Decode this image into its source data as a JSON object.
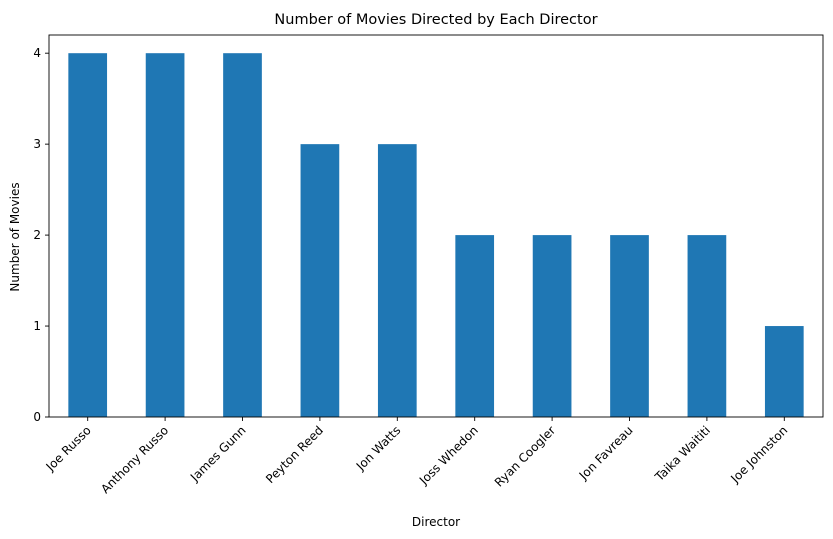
{
  "chart_data": {
    "type": "bar",
    "title": "Number of Movies Directed by Each Director",
    "xlabel": "Director",
    "ylabel": "Number of Movies",
    "categories": [
      "Joe Russo",
      "Anthony Russo",
      "James Gunn",
      "Peyton Reed",
      "Jon Watts",
      "Joss Whedon",
      "Ryan Coogler",
      "Jon Favreau",
      "Taika Waititi",
      "Joe Johnston"
    ],
    "values": [
      4,
      4,
      4,
      3,
      3,
      2,
      2,
      2,
      2,
      1
    ],
    "yticks": [
      "0",
      "1",
      "2",
      "3",
      "4"
    ],
    "ylim": [
      0,
      4.2
    ],
    "grid": false,
    "bar_color": "#1f77b4"
  }
}
